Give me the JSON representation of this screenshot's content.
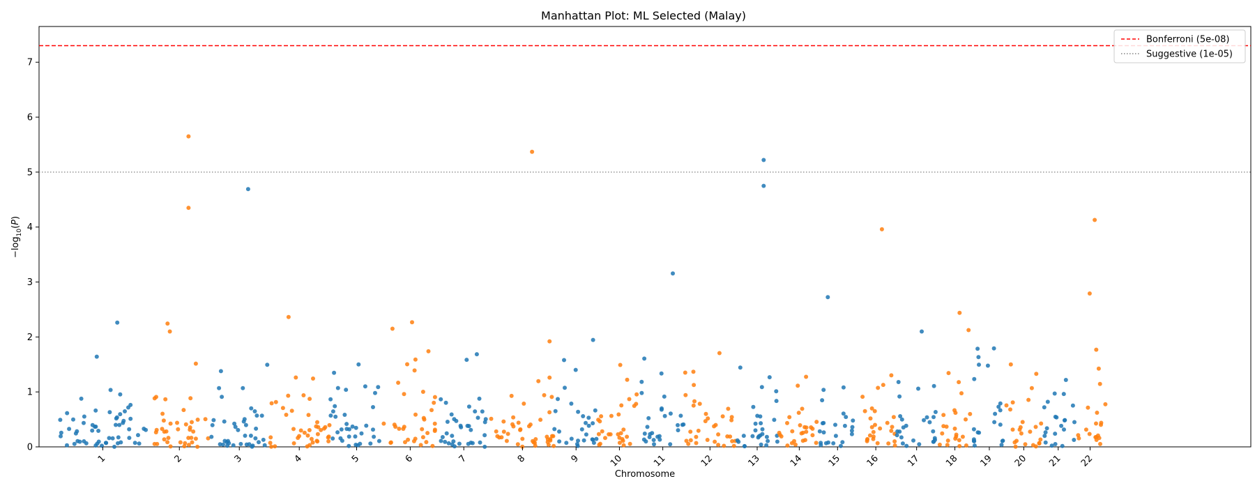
{
  "chart_data": {
    "type": "scatter",
    "title": "Manhattan Plot: ML Selected (Malay)",
    "xlabel": "Chromosome",
    "ylabel": "−log10(P)",
    "ylim": [
      0,
      7.65
    ],
    "xlim": [
      -1.25,
      22.5
    ],
    "yticks": [
      0,
      1,
      2,
      3,
      4,
      5,
      6,
      7
    ],
    "colors": {
      "odd": "#1f77b4",
      "even": "#ff7f0e"
    },
    "chromosomes": [
      "1",
      "2",
      "3",
      "4",
      "5",
      "6",
      "7",
      "8",
      "9",
      "10",
      "11",
      "12",
      "13",
      "14",
      "15",
      "16",
      "17",
      "18",
      "19",
      "20",
      "21",
      "22"
    ],
    "chrom_ranges": [
      [
        -0.85,
        0.85
      ],
      [
        0.9,
        2.1
      ],
      [
        2.1,
        3.25
      ],
      [
        3.25,
        4.45
      ],
      [
        4.45,
        5.5
      ],
      [
        5.5,
        6.55
      ],
      [
        6.55,
        7.6
      ],
      [
        7.6,
        8.85
      ],
      [
        8.85,
        9.7
      ],
      [
        9.7,
        10.55
      ],
      [
        10.55,
        11.4
      ],
      [
        11.4,
        12.4
      ],
      [
        12.4,
        13.25
      ],
      [
        13.25,
        14.05
      ],
      [
        14.05,
        14.75
      ],
      [
        14.75,
        15.55
      ],
      [
        15.55,
        16.35
      ],
      [
        16.35,
        17.05
      ],
      [
        17.05,
        17.7
      ],
      [
        17.7,
        18.4
      ],
      [
        18.4,
        19.05
      ],
      [
        19.05,
        19.65
      ]
    ],
    "thresholds": [
      {
        "name": "Bonferroni (5e-08)",
        "value": 7.301,
        "color": "#ff0000",
        "style": "dashed"
      },
      {
        "name": "Suggestive (1e-05)",
        "value": 5.0,
        "color": "#808080",
        "style": "dotted"
      }
    ],
    "legend_position": "top-right",
    "highlighted_points": [
      {
        "chromosome": "2",
        "neglog10p": 5.65
      },
      {
        "chromosome": "8",
        "neglog10p": 5.37
      },
      {
        "chromosome": "13",
        "neglog10p": 5.22
      },
      {
        "chromosome": "3",
        "neglog10p": 4.69
      },
      {
        "chromosome": "13",
        "neglog10p": 4.75
      },
      {
        "chromosome": "2",
        "neglog10p": 4.35
      },
      {
        "chromosome": "22",
        "neglog10p": 4.13
      },
      {
        "chromosome": "16",
        "neglog10p": 3.96
      }
    ]
  }
}
